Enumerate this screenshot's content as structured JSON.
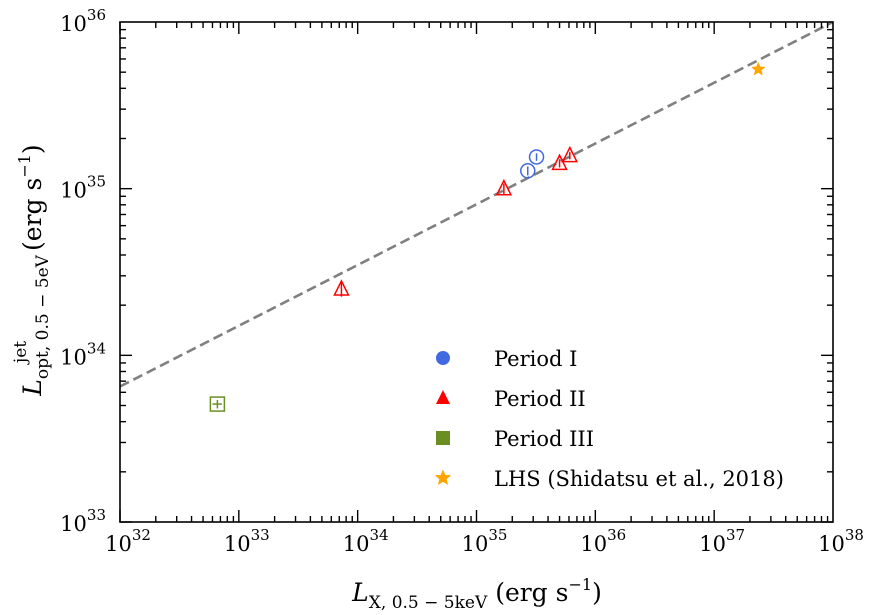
{
  "chart_data": {
    "type": "scatter",
    "title": "",
    "xlabel": {
      "main": "L",
      "sub": "X, 0.5 − 5keV",
      "unit": "(erg s",
      "unit_exp": "−1",
      "unit_close": ")"
    },
    "ylabel": {
      "main": "L",
      "sup": "jet",
      "sub": "opt, 0.5 − 5eV",
      "unit": "(erg s",
      "unit_exp": "−1",
      "unit_close": ")"
    },
    "x_scale": "log",
    "y_scale": "log",
    "xlim": [
      1e+32,
      1e+38
    ],
    "ylim": [
      1e+33,
      1e+36
    ],
    "x_ticks": [
      {
        "base": "10",
        "exp": "32",
        "value": 1e+32
      },
      {
        "base": "10",
        "exp": "33",
        "value": 1e+33
      },
      {
        "base": "10",
        "exp": "34",
        "value": 1e+34
      },
      {
        "base": "10",
        "exp": "35",
        "value": 1e+35
      },
      {
        "base": "10",
        "exp": "36",
        "value": 1e+36
      },
      {
        "base": "10",
        "exp": "37",
        "value": 1e+37
      },
      {
        "base": "10",
        "exp": "38",
        "value": 1e+38
      }
    ],
    "y_ticks": [
      {
        "base": "10",
        "exp": "33",
        "value": 1e+33
      },
      {
        "base": "10",
        "exp": "34",
        "value": 1e+34
      },
      {
        "base": "10",
        "exp": "35",
        "value": 1e+35
      },
      {
        "base": "10",
        "exp": "36",
        "value": 1e+36
      }
    ],
    "fit_line": {
      "style": "dashed",
      "color": "#808080",
      "points": [
        [
          1e+32,
          6.5e+33
        ],
        [
          1e+38,
          1e+36
        ]
      ]
    },
    "series": [
      {
        "name": "Period I",
        "marker": "circle",
        "color": "#4169E1",
        "points": [
          {
            "x": 2.7e+35,
            "y": 1.28e+35,
            "yerr": 8e+33
          },
          {
            "x": 3.2e+35,
            "y": 1.55e+35,
            "yerr": 8e+33
          }
        ]
      },
      {
        "name": "Period II",
        "marker": "triangle",
        "color": "#FF0000",
        "points": [
          {
            "x": 7.3e+33,
            "y": 2.5e+34,
            "yerr": 2.5e+33
          },
          {
            "x": 1.7e+35,
            "y": 1e+35,
            "yerr": 7e+33
          },
          {
            "x": 5e+35,
            "y": 1.42e+35,
            "yerr": 8e+33
          },
          {
            "x": 6.1e+35,
            "y": 1.58e+35,
            "yerr": 8e+33
          }
        ]
      },
      {
        "name": "Period III",
        "marker": "square",
        "color": "#6B8E23",
        "points": [
          {
            "x": 6.6e+32,
            "y": 5.1e+33,
            "xerr": 6e+31,
            "yerr": 3e+32
          }
        ]
      },
      {
        "name": "LHS (Shidatsu et al., 2018)",
        "marker": "star",
        "color": "#FFA500",
        "points": [
          {
            "x": 2.35e+37,
            "y": 5.2e+35
          }
        ]
      }
    ],
    "legend": {
      "position": "lower-right",
      "frame": false
    },
    "grid": false
  }
}
